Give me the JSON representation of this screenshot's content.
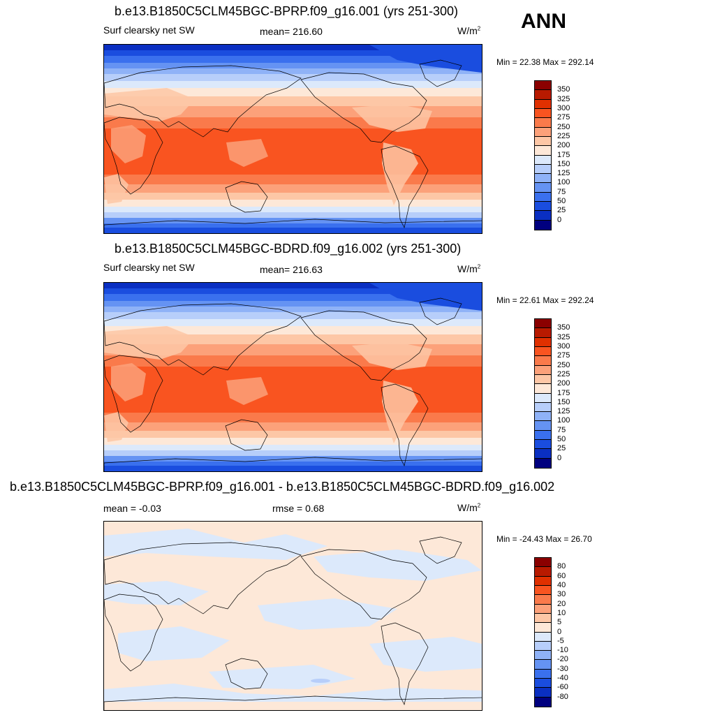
{
  "season": "ANN",
  "panels": [
    {
      "title": "b.e13.B1850C5CLM45BGC-BPRP.f09_g16.001 (yrs 251-300)",
      "left_label": "Surf clearsky net SW",
      "center_label": "mean= 216.60",
      "units": "W/m",
      "units_sup": "2",
      "minmax": "Min =  22.38 Max = 292.14",
      "colorbar_labels": [
        "350",
        "325",
        "300",
        "275",
        "250",
        "225",
        "200",
        "175",
        "150",
        "125",
        "100",
        "75",
        "50",
        "25",
        "0"
      ],
      "map_type": "absolute"
    },
    {
      "title": "b.e13.B1850C5CLM45BGC-BDRD.f09_g16.002 (yrs 251-300)",
      "left_label": "Surf clearsky net SW",
      "center_label": "mean= 216.63",
      "units": "W/m",
      "units_sup": "2",
      "minmax": "Min =  22.61 Max = 292.24",
      "colorbar_labels": [
        "350",
        "325",
        "300",
        "275",
        "250",
        "225",
        "200",
        "175",
        "150",
        "125",
        "100",
        "75",
        "50",
        "25",
        "0"
      ],
      "map_type": "absolute"
    },
    {
      "title": "b.e13.B1850C5CLM45BGC-BPRP.f09_g16.001 - b.e13.B1850C5CLM45BGC-BDRD.f09_g16.002",
      "left_label": "mean =  -0.03",
      "center_label": "rmse =   0.68",
      "units": "W/m",
      "units_sup": "2",
      "minmax": "Min = -24.43 Max =  26.70",
      "colorbar_labels": [
        "80",
        "60",
        "40",
        "30",
        "20",
        "10",
        "5",
        "0",
        "-5",
        "-10",
        "-20",
        "-30",
        "-40",
        "-60",
        "-80"
      ],
      "map_type": "difference"
    }
  ],
  "colors": {
    "abs_scale": [
      "#8b0000",
      "#b81a00",
      "#e03000",
      "#f95420",
      "#fa7a4b",
      "#fca17a",
      "#fdc7a6",
      "#fde8d8",
      "#dce9fb",
      "#b7cefa",
      "#8fb2f7",
      "#6593f3",
      "#3a70ee",
      "#1a4ddf",
      "#0a2fc2",
      "#00007f"
    ],
    "diff_scale": [
      "#8b0000",
      "#b81a00",
      "#e03000",
      "#f95420",
      "#fa7a4b",
      "#fca17a",
      "#fdc7a6",
      "#fde8d8",
      "#dce9fb",
      "#b7cefa",
      "#8fb2f7",
      "#6593f3",
      "#3a70ee",
      "#1a4ddf",
      "#0a2fc2",
      "#00007f"
    ],
    "map_border": "#000000"
  }
}
